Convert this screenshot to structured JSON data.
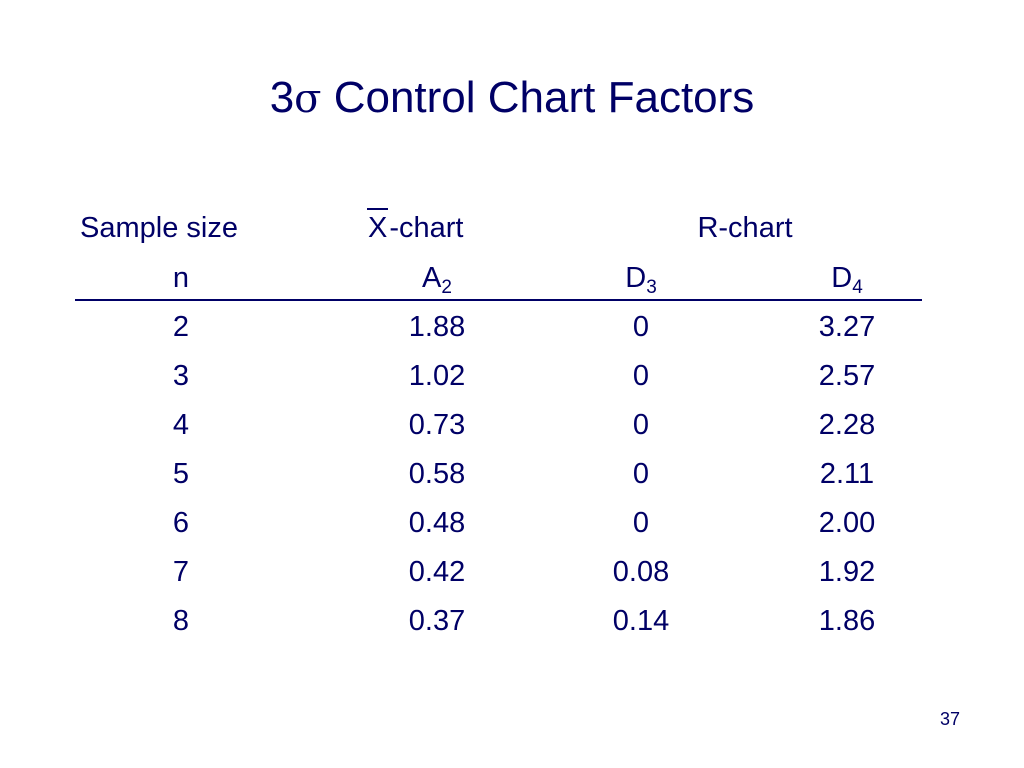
{
  "slide": {
    "title_prefix": "3",
    "title_symbol": "σ",
    "title_suffix": " Control Chart Factors",
    "page_number": "37"
  },
  "table": {
    "group_headers": {
      "sample_size": "Sample size",
      "xbar_symbol": "X",
      "xbar_suffix": "-chart",
      "r_chart": "R-chart"
    },
    "column_headers": {
      "n": "n",
      "a_base": "A",
      "a_sub": "2",
      "d3_base": "D",
      "d3_sub": "3",
      "d4_base": "D",
      "d4_sub": "4"
    },
    "rows": [
      {
        "n": "2",
        "a2": "1.88",
        "d3": "0",
        "d4": "3.27"
      },
      {
        "n": "3",
        "a2": "1.02",
        "d3": "0",
        "d4": "2.57"
      },
      {
        "n": "4",
        "a2": "0.73",
        "d3": "0",
        "d4": "2.28"
      },
      {
        "n": "5",
        "a2": "0.58",
        "d3": "0",
        "d4": "2.11"
      },
      {
        "n": "6",
        "a2": "0.48",
        "d3": "0",
        "d4": "2.00"
      },
      {
        "n": "7",
        "a2": "0.42",
        "d3": "0.08",
        "d4": "1.92"
      },
      {
        "n": "8",
        "a2": "0.37",
        "d3": "0.14",
        "d4": "1.86"
      }
    ]
  },
  "colors": {
    "text": "#000066",
    "background": "#ffffff"
  }
}
